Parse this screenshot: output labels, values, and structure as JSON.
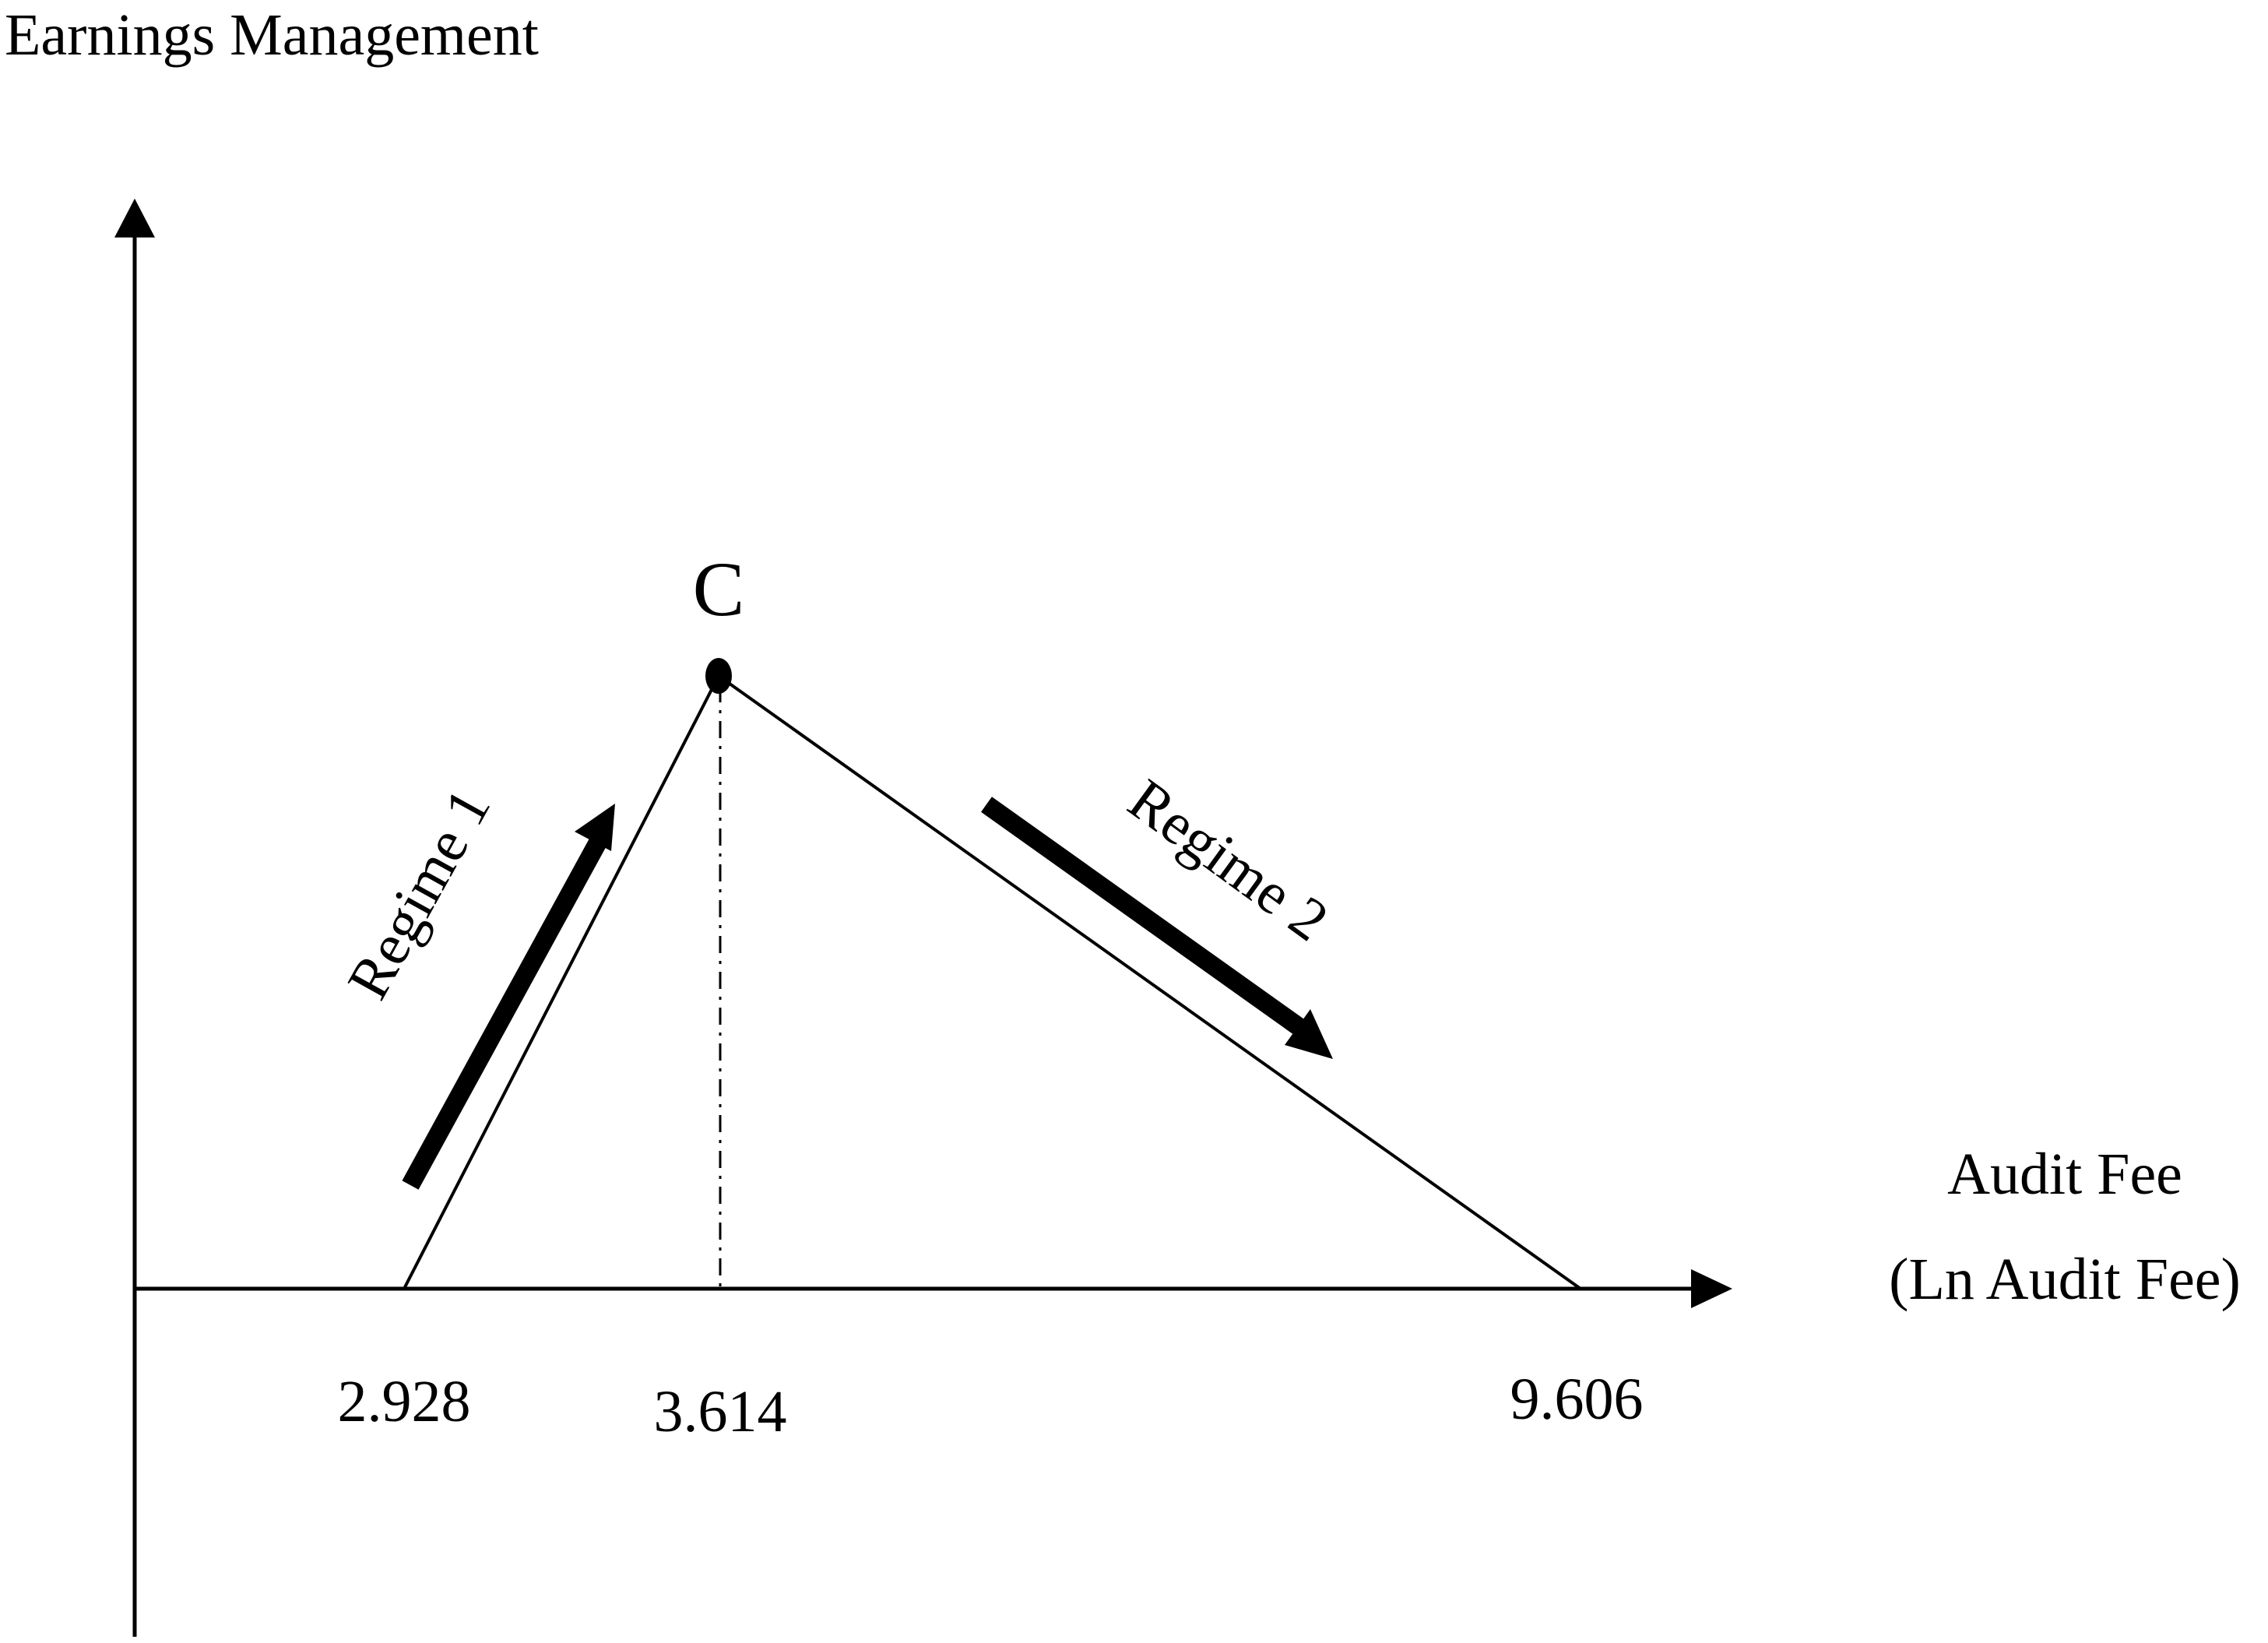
{
  "figure": {
    "y_axis_label": "Earnings Management",
    "x_axis_label_line1": "Audit Fee",
    "x_axis_label_line2": "(Ln Audit Fee)",
    "peak_label": "C",
    "regime1_label": "Regime 1",
    "regime2_label": "Regime 2",
    "ticks": [
      {
        "label": "2.928",
        "value": 2.928
      },
      {
        "label": "3.614",
        "value": 3.614
      },
      {
        "label": "9.606",
        "value": 9.606
      }
    ]
  }
}
